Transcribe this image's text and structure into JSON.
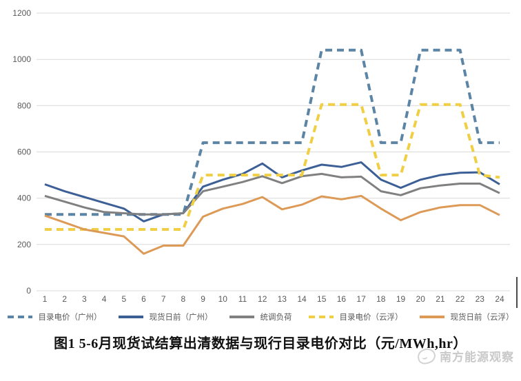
{
  "chart_data": {
    "type": "line",
    "title": "图1 5-6月现货试结算出清数据与现行目录电价对比（元/MWh,hr）",
    "xlabel": "",
    "ylabel": "",
    "x": [
      1,
      2,
      3,
      4,
      5,
      6,
      7,
      8,
      9,
      10,
      11,
      12,
      13,
      14,
      15,
      16,
      17,
      18,
      19,
      20,
      21,
      22,
      23,
      24
    ],
    "ylim": [
      0,
      1200
    ],
    "yticks": [
      0,
      200,
      400,
      600,
      800,
      1000,
      1200
    ],
    "grid": true,
    "grid_color": "#d9d9d9",
    "axis_text_color": "#595959",
    "legend_position": "bottom",
    "series": [
      {
        "name": "目录电价（广州）",
        "style": "dashed",
        "color": "#5b84a5",
        "values": [
          330,
          330,
          330,
          330,
          330,
          330,
          330,
          330,
          640,
          640,
          640,
          640,
          640,
          640,
          1040,
          1040,
          1040,
          640,
          640,
          1040,
          1040,
          1040,
          640,
          640
        ]
      },
      {
        "name": "现货日前（广州）",
        "style": "solid",
        "color": "#3c5f96",
        "values": [
          460,
          430,
          405,
          380,
          355,
          300,
          330,
          335,
          450,
          480,
          505,
          550,
          490,
          520,
          545,
          535,
          555,
          480,
          445,
          480,
          500,
          510,
          512,
          460
        ]
      },
      {
        "name": "统调负荷",
        "style": "solid",
        "color": "#808080",
        "values": [
          410,
          385,
          360,
          340,
          335,
          330,
          330,
          335,
          430,
          450,
          470,
          495,
          465,
          495,
          505,
          490,
          493,
          430,
          413,
          443,
          455,
          463,
          463,
          422
        ]
      },
      {
        "name": "目录电价（云浮）",
        "style": "dashed",
        "color": "#f0cf45",
        "values": [
          265,
          265,
          265,
          265,
          265,
          265,
          265,
          265,
          500,
          500,
          500,
          500,
          500,
          500,
          805,
          805,
          805,
          500,
          500,
          805,
          805,
          805,
          500,
          490
        ]
      },
      {
        "name": "现货日前（云浮）",
        "style": "solid",
        "color": "#dd9a57",
        "values": [
          325,
          295,
          265,
          250,
          235,
          160,
          195,
          195,
          320,
          355,
          375,
          405,
          352,
          372,
          408,
          395,
          410,
          355,
          305,
          340,
          360,
          370,
          370,
          327
        ]
      }
    ]
  },
  "watermark": {
    "text": "南方能源观察",
    "color": "#c9c9c9"
  }
}
